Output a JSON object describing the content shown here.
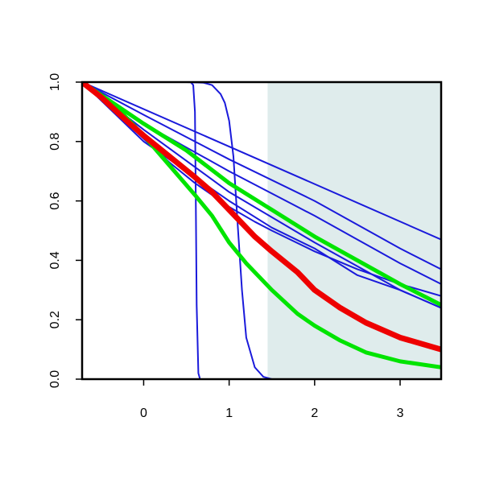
{
  "chart_data": {
    "type": "line",
    "title": "",
    "xlabel": "",
    "ylabel": "",
    "xlim": [
      -0.72,
      3.48
    ],
    "ylim": [
      0.0,
      1.0
    ],
    "x_ticks": [
      0,
      1,
      2,
      3
    ],
    "y_ticks": [
      0.0,
      0.2,
      0.4,
      0.6,
      0.8,
      1.0
    ],
    "x_tick_labels": [
      "0",
      "1",
      "2",
      "3"
    ],
    "y_tick_labels": [
      "0.0",
      "0.2",
      "0.4",
      "0.6",
      "0.8",
      "1.0"
    ],
    "grid": false,
    "legend": "none",
    "shaded_region": {
      "x_start": 1.45,
      "x_end": 3.48,
      "color": "#dfecec"
    },
    "series": [
      {
        "color": "#1a1adb",
        "width": 2,
        "x": [
          -0.72,
          0.55,
          0.58,
          0.6,
          0.61,
          0.62,
          0.64,
          0.66,
          3.48
        ],
        "y": [
          1.0,
          1.0,
          0.99,
          0.9,
          0.6,
          0.25,
          0.02,
          0.0,
          0.0
        ]
      },
      {
        "color": "#1a1adb",
        "width": 2,
        "x": [
          -0.72,
          0.5,
          0.7,
          0.8,
          0.9,
          0.95,
          1.0,
          1.05,
          1.1,
          1.15,
          1.2,
          1.3,
          1.4,
          1.5,
          3.48
        ],
        "y": [
          1.0,
          1.0,
          0.998,
          0.99,
          0.96,
          0.93,
          0.87,
          0.75,
          0.52,
          0.3,
          0.14,
          0.04,
          0.008,
          0.0,
          0.0
        ]
      },
      {
        "color": "#1a1adb",
        "width": 2,
        "x": [
          -0.72,
          3.48
        ],
        "y": [
          1.0,
          0.47
        ]
      },
      {
        "color": "#1a1adb",
        "width": 2,
        "x": [
          -0.72,
          0.0,
          1.0,
          2.0,
          3.0,
          3.48
        ],
        "y": [
          1.0,
          0.89,
          0.74,
          0.6,
          0.44,
          0.37
        ]
      },
      {
        "color": "#1a1adb",
        "width": 2,
        "x": [
          -0.72,
          0.0,
          1.0,
          2.0,
          3.0,
          3.48
        ],
        "y": [
          1.0,
          0.86,
          0.7,
          0.55,
          0.39,
          0.32
        ]
      },
      {
        "color": "#1a1adb",
        "width": 2,
        "x": [
          -0.72,
          0.0,
          1.0,
          2.0,
          3.0,
          3.48
        ],
        "y": [
          1.0,
          0.84,
          0.63,
          0.46,
          0.3,
          0.24
        ]
      },
      {
        "color": "#1a1adb",
        "width": 2,
        "x": [
          -0.72,
          0.0,
          0.5,
          1.0,
          1.5,
          2.0,
          2.5,
          3.0,
          3.48
        ],
        "y": [
          1.0,
          0.8,
          0.7,
          0.6,
          0.51,
          0.44,
          0.35,
          0.3,
          0.24
        ]
      },
      {
        "color": "#1a1adb",
        "width": 2,
        "x": [
          -0.72,
          0.3,
          0.6,
          0.8,
          1.0,
          1.3,
          1.5,
          2.0,
          2.5,
          3.0,
          3.48
        ],
        "y": [
          1.0,
          0.73,
          0.66,
          0.62,
          0.58,
          0.53,
          0.5,
          0.43,
          0.37,
          0.32,
          0.28
        ]
      },
      {
        "color": "#00e400",
        "width": 5,
        "x": [
          -0.72,
          0.0,
          0.5,
          1.0,
          1.5,
          2.0,
          2.5,
          3.0,
          3.48
        ],
        "y": [
          1.0,
          0.86,
          0.77,
          0.66,
          0.57,
          0.48,
          0.4,
          0.32,
          0.25
        ]
      },
      {
        "color": "#00e400",
        "width": 5,
        "x": [
          -0.72,
          -0.3,
          0.0,
          0.3,
          0.6,
          0.8,
          1.0,
          1.2,
          1.5,
          1.8,
          2.0,
          2.3,
          2.6,
          3.0,
          3.48
        ],
        "y": [
          1.0,
          0.91,
          0.82,
          0.72,
          0.62,
          0.55,
          0.46,
          0.39,
          0.3,
          0.22,
          0.18,
          0.13,
          0.09,
          0.06,
          0.04
        ]
      },
      {
        "color": "#ee0000",
        "width": 7,
        "x": [
          -0.72,
          -0.5,
          -0.2,
          0.0,
          0.3,
          0.6,
          0.8,
          1.0,
          1.3,
          1.5,
          1.8,
          2.0,
          2.3,
          2.6,
          3.0,
          3.48
        ],
        "y": [
          1.0,
          0.95,
          0.87,
          0.82,
          0.75,
          0.68,
          0.63,
          0.57,
          0.48,
          0.43,
          0.36,
          0.3,
          0.24,
          0.19,
          0.14,
          0.1
        ]
      }
    ]
  }
}
